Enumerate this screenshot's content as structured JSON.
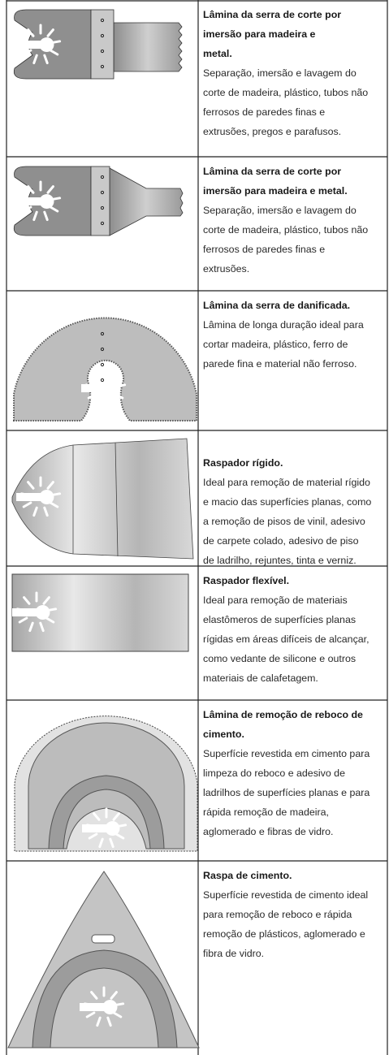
{
  "rows": [
    {
      "title_lines": [
        "Lâmina da serra de corte por",
        "imersão para madeira e",
        "metal."
      ],
      "description_lines": [
        "Separação, imersão e lavagem do",
        "corte de madeira, plástico, tubos não",
        "ferrosos de paredes finas e",
        "extrusões, pregos e parafusos."
      ]
    },
    {
      "title_lines": [
        "Lâmina da serra de corte por",
        "imersão para madeira e metal."
      ],
      "description_lines": [
        "Separação, imersão e lavagem do",
        "corte de madeira, plástico, tubos não",
        "ferrosos de paredes finas e",
        "extrusões."
      ]
    },
    {
      "title_lines": [
        "Lâmina da serra de danificada."
      ],
      "description_lines": [
        "Lâmina de longa duração ideal para",
        "cortar madeira, plástico, ferro de",
        "parede fina e material não ferroso."
      ]
    },
    {
      "title_lines": [
        "Raspador rígido."
      ],
      "description_lines": [
        "Ideal para remoção de material rígido",
        "e macio das superfícies planas, como",
        "a remoção de pisos de vinil, adesivo",
        "de carpete colado, adesivo de piso",
        "de ladrilho, rejuntes, tinta e verniz."
      ]
    },
    {
      "title_lines": [
        "Raspador flexível."
      ],
      "description_lines": [
        "Ideal para remoção de materiais",
        "elastômeros de superfícies planas",
        "rígidas em áreas difíceis de alcançar,",
        "como vedante de silicone e outros",
        "materiais de calafetagem."
      ]
    },
    {
      "title_lines": [
        "Lâmina de remoção de reboco de",
        "cimento."
      ],
      "description_lines": [
        "Superfície revestida em cimento para",
        "limpeza do reboco e adesivo de",
        "ladrilhos de superfícies planas e para",
        "rápida remoção de madeira,",
        "aglomerado e fibras de vidro."
      ]
    },
    {
      "title_lines": [
        "Raspa de cimento."
      ],
      "description_lines": [
        "Superfície revestida de cimento ideal",
        "para remoção de reboco e rápida",
        "remoção de plásticos, aglomerado e",
        "fibra de vidro."
      ]
    }
  ]
}
